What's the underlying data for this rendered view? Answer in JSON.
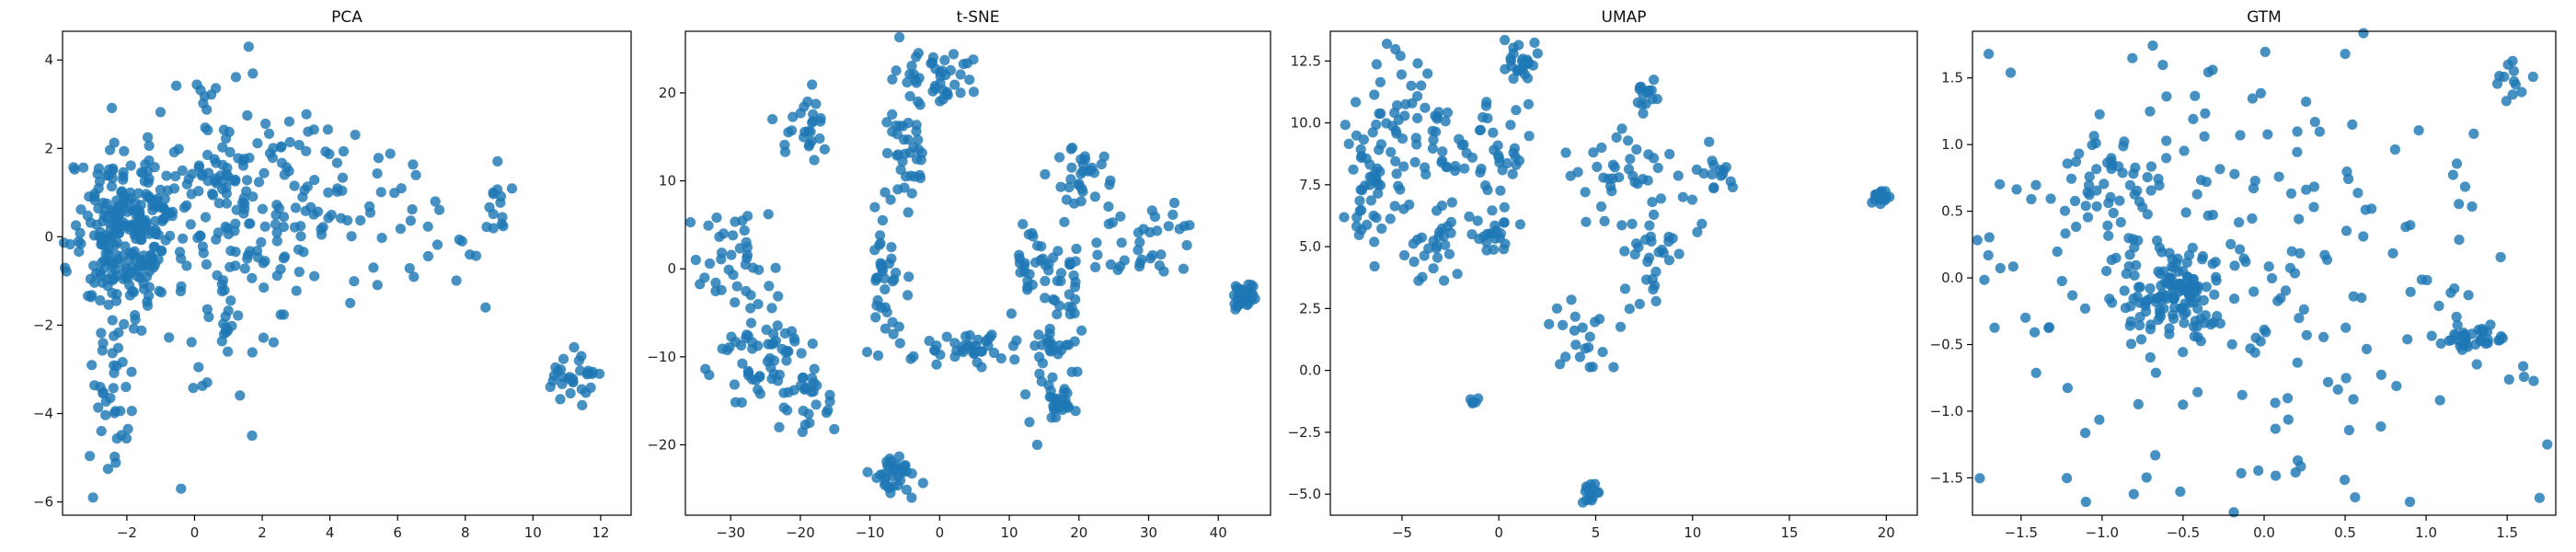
{
  "figure": {
    "marker_color": "#1f77b4",
    "background": "#ffffff"
  },
  "chart_data": [
    {
      "type": "scatter",
      "title": "PCA",
      "xlabel": "",
      "ylabel": "",
      "xlim": [
        -3.9,
        12.9
      ],
      "ylim": [
        -6.3,
        4.65
      ],
      "xticks": [
        -2,
        0,
        2,
        4,
        6,
        8,
        10,
        12
      ],
      "yticks": [
        -6,
        -4,
        -2,
        0,
        2,
        4
      ],
      "xtick_labels": [
        "−2",
        "0",
        "2",
        "4",
        "6",
        "8",
        "10",
        "12"
      ],
      "ytick_labels": [
        "−6",
        "−4",
        "−2",
        "0",
        "2",
        "4"
      ],
      "grid": false,
      "clusters": [
        {
          "cx": -2.0,
          "cy": 0.2,
          "sx": 0.8,
          "sy": 0.9,
          "n": 260
        },
        {
          "cx": -2.5,
          "cy": -3.5,
          "sx": 0.35,
          "sy": 1.3,
          "n": 45
        },
        {
          "cx": 1.0,
          "cy": 1.2,
          "sx": 0.9,
          "sy": 1.1,
          "n": 120
        },
        {
          "cx": 1.2,
          "cy": -1.5,
          "sx": 0.8,
          "sy": 0.9,
          "n": 40
        },
        {
          "cx": 3.5,
          "cy": 0.8,
          "sx": 1.2,
          "sy": 1.1,
          "n": 60
        },
        {
          "cx": 6.5,
          "cy": 0.3,
          "sx": 1.0,
          "sy": 0.8,
          "n": 25
        },
        {
          "cx": 8.9,
          "cy": 0.5,
          "sx": 0.4,
          "sy": 0.4,
          "n": 12
        },
        {
          "cx": 11.2,
          "cy": -3.2,
          "sx": 0.45,
          "sy": 0.25,
          "n": 30
        }
      ],
      "highlight_points": [
        [
          1.6,
          4.3
        ],
        [
          -0.4,
          -5.7
        ],
        [
          -3.0,
          -5.9
        ],
        [
          8.6,
          -1.6
        ],
        [
          1.7,
          -4.5
        ],
        [
          4.6,
          -1.5
        ]
      ]
    },
    {
      "type": "scatter",
      "title": "t-SNE",
      "xlabel": "",
      "ylabel": "",
      "xlim": [
        -36.5,
        47.5
      ],
      "ylim": [
        -28.0,
        27.0
      ],
      "xticks": [
        -30,
        -20,
        -10,
        0,
        10,
        20,
        30,
        40
      ],
      "yticks": [
        -20,
        -10,
        0,
        10,
        20
      ],
      "xtick_labels": [
        "−30",
        "−20",
        "−10",
        "0",
        "10",
        "20",
        "30",
        "40"
      ],
      "ytick_labels": [
        "−20",
        "−10",
        "0",
        "10",
        "20"
      ],
      "grid": false,
      "clusters": [
        {
          "cx": 0.0,
          "cy": 22.0,
          "sx": 2.5,
          "sy": 1.5,
          "n": 40
        },
        {
          "cx": -5.5,
          "cy": 13.0,
          "sx": 1.5,
          "sy": 3.0,
          "n": 40
        },
        {
          "cx": -19.0,
          "cy": 16.0,
          "sx": 1.5,
          "sy": 2.5,
          "n": 25
        },
        {
          "cx": -30.0,
          "cy": 1.0,
          "sx": 3.0,
          "sy": 3.0,
          "n": 40
        },
        {
          "cx": -25.0,
          "cy": -10.0,
          "sx": 3.5,
          "sy": 2.5,
          "n": 60
        },
        {
          "cx": -19.0,
          "cy": -15.0,
          "sx": 1.5,
          "sy": 2.5,
          "n": 25
        },
        {
          "cx": -7.5,
          "cy": -2.0,
          "sx": 1.2,
          "sy": 4.0,
          "n": 35
        },
        {
          "cx": -6.5,
          "cy": -23.5,
          "sx": 2.0,
          "sy": 1.2,
          "n": 35
        },
        {
          "cx": 5.0,
          "cy": -9.0,
          "sx": 5.0,
          "sy": 1.0,
          "n": 40
        },
        {
          "cx": 14.0,
          "cy": 0.5,
          "sx": 2.0,
          "sy": 3.0,
          "n": 35
        },
        {
          "cx": 15.5,
          "cy": -11.0,
          "sx": 1.5,
          "sy": 3.0,
          "n": 30
        },
        {
          "cx": 17.0,
          "cy": -15.0,
          "sx": 1.2,
          "sy": 1.0,
          "n": 20
        },
        {
          "cx": 20.0,
          "cy": 10.5,
          "sx": 2.0,
          "sy": 2.0,
          "n": 30
        },
        {
          "cx": 29.0,
          "cy": 3.5,
          "sx": 4.0,
          "sy": 2.5,
          "n": 35
        },
        {
          "cx": 43.8,
          "cy": -3.2,
          "sx": 0.8,
          "sy": 0.7,
          "n": 45
        },
        {
          "cx": 19.0,
          "cy": -3.0,
          "sx": 1.0,
          "sy": 2.0,
          "n": 20
        }
      ],
      "highlight_points": [
        [
          -24.0,
          17.0
        ],
        [
          14.0,
          -20.0
        ],
        [
          3.0,
          20.0
        ],
        [
          35.0,
          0.0
        ]
      ]
    },
    {
      "type": "scatter",
      "title": "UMAP",
      "xlabel": "",
      "ylabel": "",
      "xlim": [
        -8.7,
        21.6
      ],
      "ylim": [
        -5.85,
        13.7
      ],
      "xticks": [
        -5,
        0,
        5,
        10,
        15,
        20
      ],
      "yticks": [
        -5.0,
        -2.5,
        0.0,
        2.5,
        5.0,
        7.5,
        10.0,
        12.5
      ],
      "xtick_labels": [
        "−5",
        "0",
        "5",
        "10",
        "15",
        "20"
      ],
      "ytick_labels": [
        "−5.0",
        "−2.5",
        "0.0",
        "2.5",
        "5.0",
        "7.5",
        "10.0",
        "12.5"
      ],
      "grid": false,
      "clusters": [
        {
          "cx": -6.5,
          "cy": 7.5,
          "sx": 0.9,
          "sy": 1.5,
          "n": 60
        },
        {
          "cx": -4.5,
          "cy": 10.5,
          "sx": 0.8,
          "sy": 1.0,
          "n": 30
        },
        {
          "cx": -3.5,
          "cy": 5.0,
          "sx": 0.9,
          "sy": 0.6,
          "n": 25
        },
        {
          "cx": -2.3,
          "cy": 8.8,
          "sx": 0.8,
          "sy": 1.0,
          "n": 25
        },
        {
          "cx": 0.2,
          "cy": 8.9,
          "sx": 0.6,
          "sy": 0.8,
          "n": 25
        },
        {
          "cx": 1.2,
          "cy": 12.5,
          "sx": 0.6,
          "sy": 0.4,
          "n": 25
        },
        {
          "cx": -0.8,
          "cy": 5.5,
          "sx": 0.9,
          "sy": 0.5,
          "n": 25
        },
        {
          "cx": 7.0,
          "cy": 8.0,
          "sx": 1.5,
          "sy": 1.0,
          "n": 40
        },
        {
          "cx": 7.8,
          "cy": 11.2,
          "sx": 0.4,
          "sy": 0.3,
          "n": 15
        },
        {
          "cx": 8.0,
          "cy": 4.8,
          "sx": 0.9,
          "sy": 0.8,
          "n": 30
        },
        {
          "cx": 11.0,
          "cy": 7.9,
          "sx": 0.8,
          "sy": 0.3,
          "n": 12
        },
        {
          "cx": 19.7,
          "cy": 7.0,
          "sx": 0.3,
          "sy": 0.3,
          "n": 15
        },
        {
          "cx": 4.8,
          "cy": -5.0,
          "sx": 0.2,
          "sy": 0.25,
          "n": 15
        },
        {
          "cx": -1.3,
          "cy": -1.3,
          "sx": 0.15,
          "sy": 0.1,
          "n": 5
        },
        {
          "cx": 4.3,
          "cy": 1.5,
          "sx": 0.8,
          "sy": 0.9,
          "n": 20
        }
      ],
      "highlight_points": [
        [
          5.3,
          9.0
        ],
        [
          6.2,
          7.8
        ],
        [
          4.5,
          6.0
        ],
        [
          3.0,
          2.5
        ]
      ]
    },
    {
      "type": "scatter",
      "title": "GTM",
      "xlabel": "",
      "ylabel": "",
      "xlim": [
        -1.8,
        1.8
      ],
      "ylim": [
        -1.78,
        1.85
      ],
      "xticks": [
        -1.5,
        -1.0,
        -0.5,
        0.0,
        0.5,
        1.0,
        1.5
      ],
      "yticks": [
        -1.5,
        -1.0,
        -0.5,
        0.0,
        0.5,
        1.0,
        1.5
      ],
      "xtick_labels": [
        "−1.5",
        "−1.0",
        "−0.5",
        "0.0",
        "0.5",
        "1.0",
        "1.5"
      ],
      "ytick_labels": [
        "−1.5",
        "−1.0",
        "−0.5",
        "0.0",
        "0.5",
        "1.0",
        "1.5"
      ],
      "grid": false,
      "clusters": [
        {
          "cx": -0.55,
          "cy": -0.1,
          "sx": 0.15,
          "sy": 0.15,
          "n": 110
        },
        {
          "cx": -0.95,
          "cy": 0.75,
          "sx": 0.15,
          "sy": 0.18,
          "n": 40
        },
        {
          "cx": 1.28,
          "cy": -0.45,
          "sx": 0.1,
          "sy": 0.04,
          "n": 35
        },
        {
          "cx": 0.0,
          "cy": 0.0,
          "sx": 0.95,
          "sy": 0.9,
          "n": 240
        },
        {
          "cx": 1.6,
          "cy": 1.5,
          "sx": 0.08,
          "sy": 0.2,
          "n": 12
        }
      ],
      "highlight_points": [
        [
          -1.7,
          1.68
        ],
        [
          0.5,
          1.68
        ],
        [
          -1.1,
          -1.68
        ],
        [
          0.9,
          -1.68
        ],
        [
          1.7,
          -1.65
        ]
      ]
    }
  ]
}
